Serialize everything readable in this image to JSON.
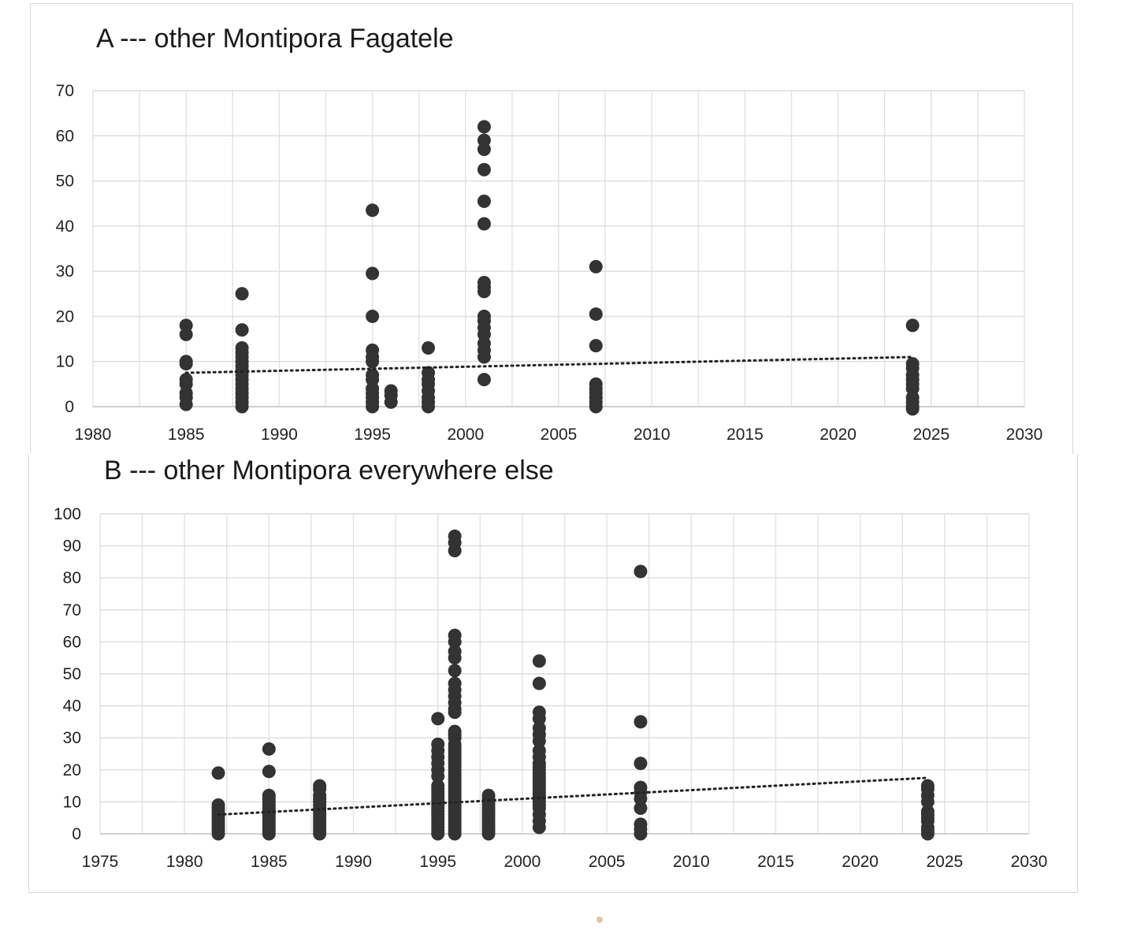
{
  "charts": {
    "a": {
      "title": "A --- other Montipora Fagatele"
    },
    "b": {
      "title": "B --- other  Montipora everywhere else"
    }
  },
  "chart_data": [
    {
      "type": "scatter",
      "title": "A --- other Montipora Fagatele",
      "xlabel": "",
      "ylabel": "",
      "xlim": [
        1980,
        2030
      ],
      "ylim": [
        0,
        70
      ],
      "xticks": [
        1980,
        1985,
        1990,
        1995,
        2000,
        2005,
        2010,
        2015,
        2020,
        2025,
        2030
      ],
      "yticks": [
        0,
        10,
        20,
        30,
        40,
        50,
        60,
        70
      ],
      "grid": true,
      "legend": "none",
      "marker_color": "#333333",
      "trendline": {
        "style": "dotted",
        "from": [
          1985,
          7.5
        ],
        "to": [
          2024,
          11
        ]
      },
      "series": [
        {
          "points": [
            [
              1985,
              18
            ],
            [
              1985,
              16
            ],
            [
              1985,
              10
            ],
            [
              1985,
              9.5
            ],
            [
              1985,
              6
            ],
            [
              1985,
              5
            ],
            [
              1985,
              3
            ],
            [
              1985,
              2
            ],
            [
              1985,
              0.5
            ],
            [
              1988,
              25
            ],
            [
              1988,
              17
            ],
            [
              1988,
              13
            ],
            [
              1988,
              12
            ],
            [
              1988,
              11
            ],
            [
              1988,
              10
            ],
            [
              1988,
              9
            ],
            [
              1988,
              8
            ],
            [
              1988,
              7
            ],
            [
              1988,
              6
            ],
            [
              1988,
              5
            ],
            [
              1988,
              4
            ],
            [
              1988,
              3
            ],
            [
              1988,
              2
            ],
            [
              1988,
              1
            ],
            [
              1988,
              0
            ],
            [
              1995,
              43.5
            ],
            [
              1995,
              29.5
            ],
            [
              1995,
              20
            ],
            [
              1995,
              12.5
            ],
            [
              1995,
              11
            ],
            [
              1995,
              10
            ],
            [
              1995,
              7
            ],
            [
              1995,
              6
            ],
            [
              1995,
              4
            ],
            [
              1995,
              3
            ],
            [
              1995,
              2
            ],
            [
              1995,
              1
            ],
            [
              1995,
              0
            ],
            [
              1996,
              3.5
            ],
            [
              1996,
              2.5
            ],
            [
              1996,
              1
            ],
            [
              1998,
              13
            ],
            [
              1998,
              7.5
            ],
            [
              1998,
              6
            ],
            [
              1998,
              5
            ],
            [
              1998,
              3.5
            ],
            [
              1998,
              2
            ],
            [
              1998,
              1
            ],
            [
              1998,
              0
            ],
            [
              2001,
              62
            ],
            [
              2001,
              59
            ],
            [
              2001,
              57
            ],
            [
              2001,
              52.5
            ],
            [
              2001,
              45.5
            ],
            [
              2001,
              40.5
            ],
            [
              2001,
              27.5
            ],
            [
              2001,
              26.5
            ],
            [
              2001,
              25.5
            ],
            [
              2001,
              20
            ],
            [
              2001,
              19
            ],
            [
              2001,
              17.5
            ],
            [
              2001,
              16
            ],
            [
              2001,
              14
            ],
            [
              2001,
              12.5
            ],
            [
              2001,
              11
            ],
            [
              2001,
              6
            ],
            [
              2007,
              31
            ],
            [
              2007,
              20.5
            ],
            [
              2007,
              13.5
            ],
            [
              2007,
              5
            ],
            [
              2007,
              4
            ],
            [
              2007,
              3
            ],
            [
              2007,
              2
            ],
            [
              2007,
              1
            ],
            [
              2007,
              0
            ],
            [
              2024,
              18
            ],
            [
              2024,
              9.5
            ],
            [
              2024,
              8.5
            ],
            [
              2024,
              7
            ],
            [
              2024,
              6
            ],
            [
              2024,
              5
            ],
            [
              2024,
              4
            ],
            [
              2024,
              2
            ],
            [
              2024,
              1
            ],
            [
              2024,
              0
            ],
            [
              2024,
              -0.5
            ]
          ]
        }
      ]
    },
    {
      "type": "scatter",
      "title": "B --- other  Montipora everywhere else",
      "xlabel": "",
      "ylabel": "",
      "xlim": [
        1975,
        2030
      ],
      "ylim": [
        0,
        100
      ],
      "xticks": [
        1975,
        1980,
        1985,
        1990,
        1995,
        2000,
        2005,
        2010,
        2015,
        2020,
        2025,
        2030
      ],
      "yticks": [
        0,
        10,
        20,
        30,
        40,
        50,
        60,
        70,
        80,
        90,
        100
      ],
      "grid": true,
      "legend": "none",
      "marker_color": "#333333",
      "trendline": {
        "style": "dotted",
        "from": [
          1982,
          6
        ],
        "to": [
          2024,
          17.5
        ]
      },
      "series": [
        {
          "points": [
            [
              1982,
              19
            ],
            [
              1982,
              9
            ],
            [
              1982,
              8
            ],
            [
              1982,
              7
            ],
            [
              1982,
              6
            ],
            [
              1982,
              5
            ],
            [
              1982,
              4
            ],
            [
              1982,
              3
            ],
            [
              1982,
              2
            ],
            [
              1982,
              1
            ],
            [
              1982,
              0
            ],
            [
              1985,
              26.5
            ],
            [
              1985,
              19.5
            ],
            [
              1985,
              12
            ],
            [
              1985,
              11
            ],
            [
              1985,
              10
            ],
            [
              1985,
              9
            ],
            [
              1985,
              8
            ],
            [
              1985,
              7
            ],
            [
              1985,
              6
            ],
            [
              1985,
              5
            ],
            [
              1985,
              4
            ],
            [
              1985,
              3
            ],
            [
              1985,
              2
            ],
            [
              1985,
              1
            ],
            [
              1985,
              0
            ],
            [
              1988,
              15
            ],
            [
              1988,
              14
            ],
            [
              1988,
              12
            ],
            [
              1988,
              11
            ],
            [
              1988,
              10
            ],
            [
              1988,
              9
            ],
            [
              1988,
              8
            ],
            [
              1988,
              7
            ],
            [
              1988,
              6
            ],
            [
              1988,
              5
            ],
            [
              1988,
              4
            ],
            [
              1988,
              3
            ],
            [
              1988,
              2
            ],
            [
              1988,
              1
            ],
            [
              1988,
              0
            ],
            [
              1995,
              36
            ],
            [
              1995,
              28
            ],
            [
              1995,
              26
            ],
            [
              1995,
              24
            ],
            [
              1995,
              22
            ],
            [
              1995,
              20
            ],
            [
              1995,
              18
            ],
            [
              1995,
              15
            ],
            [
              1995,
              14
            ],
            [
              1995,
              13
            ],
            [
              1995,
              12
            ],
            [
              1995,
              11
            ],
            [
              1995,
              10
            ],
            [
              1995,
              9
            ],
            [
              1995,
              8
            ],
            [
              1995,
              7
            ],
            [
              1995,
              6
            ],
            [
              1995,
              5
            ],
            [
              1995,
              4
            ],
            [
              1995,
              3
            ],
            [
              1995,
              2
            ],
            [
              1995,
              1
            ],
            [
              1995,
              0
            ],
            [
              1996,
              93
            ],
            [
              1996,
              91
            ],
            [
              1996,
              88.5
            ],
            [
              1996,
              62
            ],
            [
              1996,
              60
            ],
            [
              1996,
              57
            ],
            [
              1996,
              55
            ],
            [
              1996,
              51
            ],
            [
              1996,
              47
            ],
            [
              1996,
              45
            ],
            [
              1996,
              43
            ],
            [
              1996,
              41
            ],
            [
              1996,
              39
            ],
            [
              1996,
              38
            ],
            [
              1996,
              32
            ],
            [
              1996,
              31
            ],
            [
              1996,
              30
            ],
            [
              1996,
              28
            ],
            [
              1996,
              27
            ],
            [
              1996,
              26
            ],
            [
              1996,
              25
            ],
            [
              1996,
              24
            ],
            [
              1996,
              23
            ],
            [
              1996,
              22
            ],
            [
              1996,
              21
            ],
            [
              1996,
              20
            ],
            [
              1996,
              19
            ],
            [
              1996,
              18
            ],
            [
              1996,
              17
            ],
            [
              1996,
              16
            ],
            [
              1996,
              15
            ],
            [
              1996,
              14
            ],
            [
              1996,
              13
            ],
            [
              1996,
              12
            ],
            [
              1996,
              11
            ],
            [
              1996,
              10
            ],
            [
              1996,
              9
            ],
            [
              1996,
              8
            ],
            [
              1996,
              7
            ],
            [
              1996,
              6
            ],
            [
              1996,
              5
            ],
            [
              1996,
              4
            ],
            [
              1996,
              3
            ],
            [
              1996,
              2
            ],
            [
              1996,
              1
            ],
            [
              1996,
              0
            ],
            [
              1998,
              12
            ],
            [
              1998,
              11
            ],
            [
              1998,
              10
            ],
            [
              1998,
              9
            ],
            [
              1998,
              8
            ],
            [
              1998,
              7
            ],
            [
              1998,
              6
            ],
            [
              1998,
              5
            ],
            [
              1998,
              4
            ],
            [
              1998,
              3
            ],
            [
              1998,
              2
            ],
            [
              1998,
              1
            ],
            [
              1998,
              0
            ],
            [
              2001,
              54
            ],
            [
              2001,
              47
            ],
            [
              2001,
              38
            ],
            [
              2001,
              36
            ],
            [
              2001,
              33
            ],
            [
              2001,
              31
            ],
            [
              2001,
              29
            ],
            [
              2001,
              26
            ],
            [
              2001,
              24
            ],
            [
              2001,
              22
            ],
            [
              2001,
              21
            ],
            [
              2001,
              20
            ],
            [
              2001,
              19
            ],
            [
              2001,
              18
            ],
            [
              2001,
              17
            ],
            [
              2001,
              16
            ],
            [
              2001,
              15
            ],
            [
              2001,
              14
            ],
            [
              2001,
              13
            ],
            [
              2001,
              12
            ],
            [
              2001,
              11
            ],
            [
              2001,
              10
            ],
            [
              2001,
              9
            ],
            [
              2001,
              8
            ],
            [
              2001,
              6
            ],
            [
              2001,
              4
            ],
            [
              2001,
              2
            ],
            [
              2007,
              82
            ],
            [
              2007,
              35
            ],
            [
              2007,
              22
            ],
            [
              2007,
              14.5
            ],
            [
              2007,
              13
            ],
            [
              2007,
              11
            ],
            [
              2007,
              8
            ],
            [
              2007,
              3
            ],
            [
              2007,
              1.5
            ],
            [
              2007,
              0
            ],
            [
              2024,
              15
            ],
            [
              2024,
              14
            ],
            [
              2024,
              12
            ],
            [
              2024,
              10
            ],
            [
              2024,
              7
            ],
            [
              2024,
              6
            ],
            [
              2024,
              5
            ],
            [
              2024,
              4
            ],
            [
              2024,
              2
            ],
            [
              2024,
              1
            ],
            [
              2024,
              0
            ]
          ]
        }
      ]
    }
  ]
}
